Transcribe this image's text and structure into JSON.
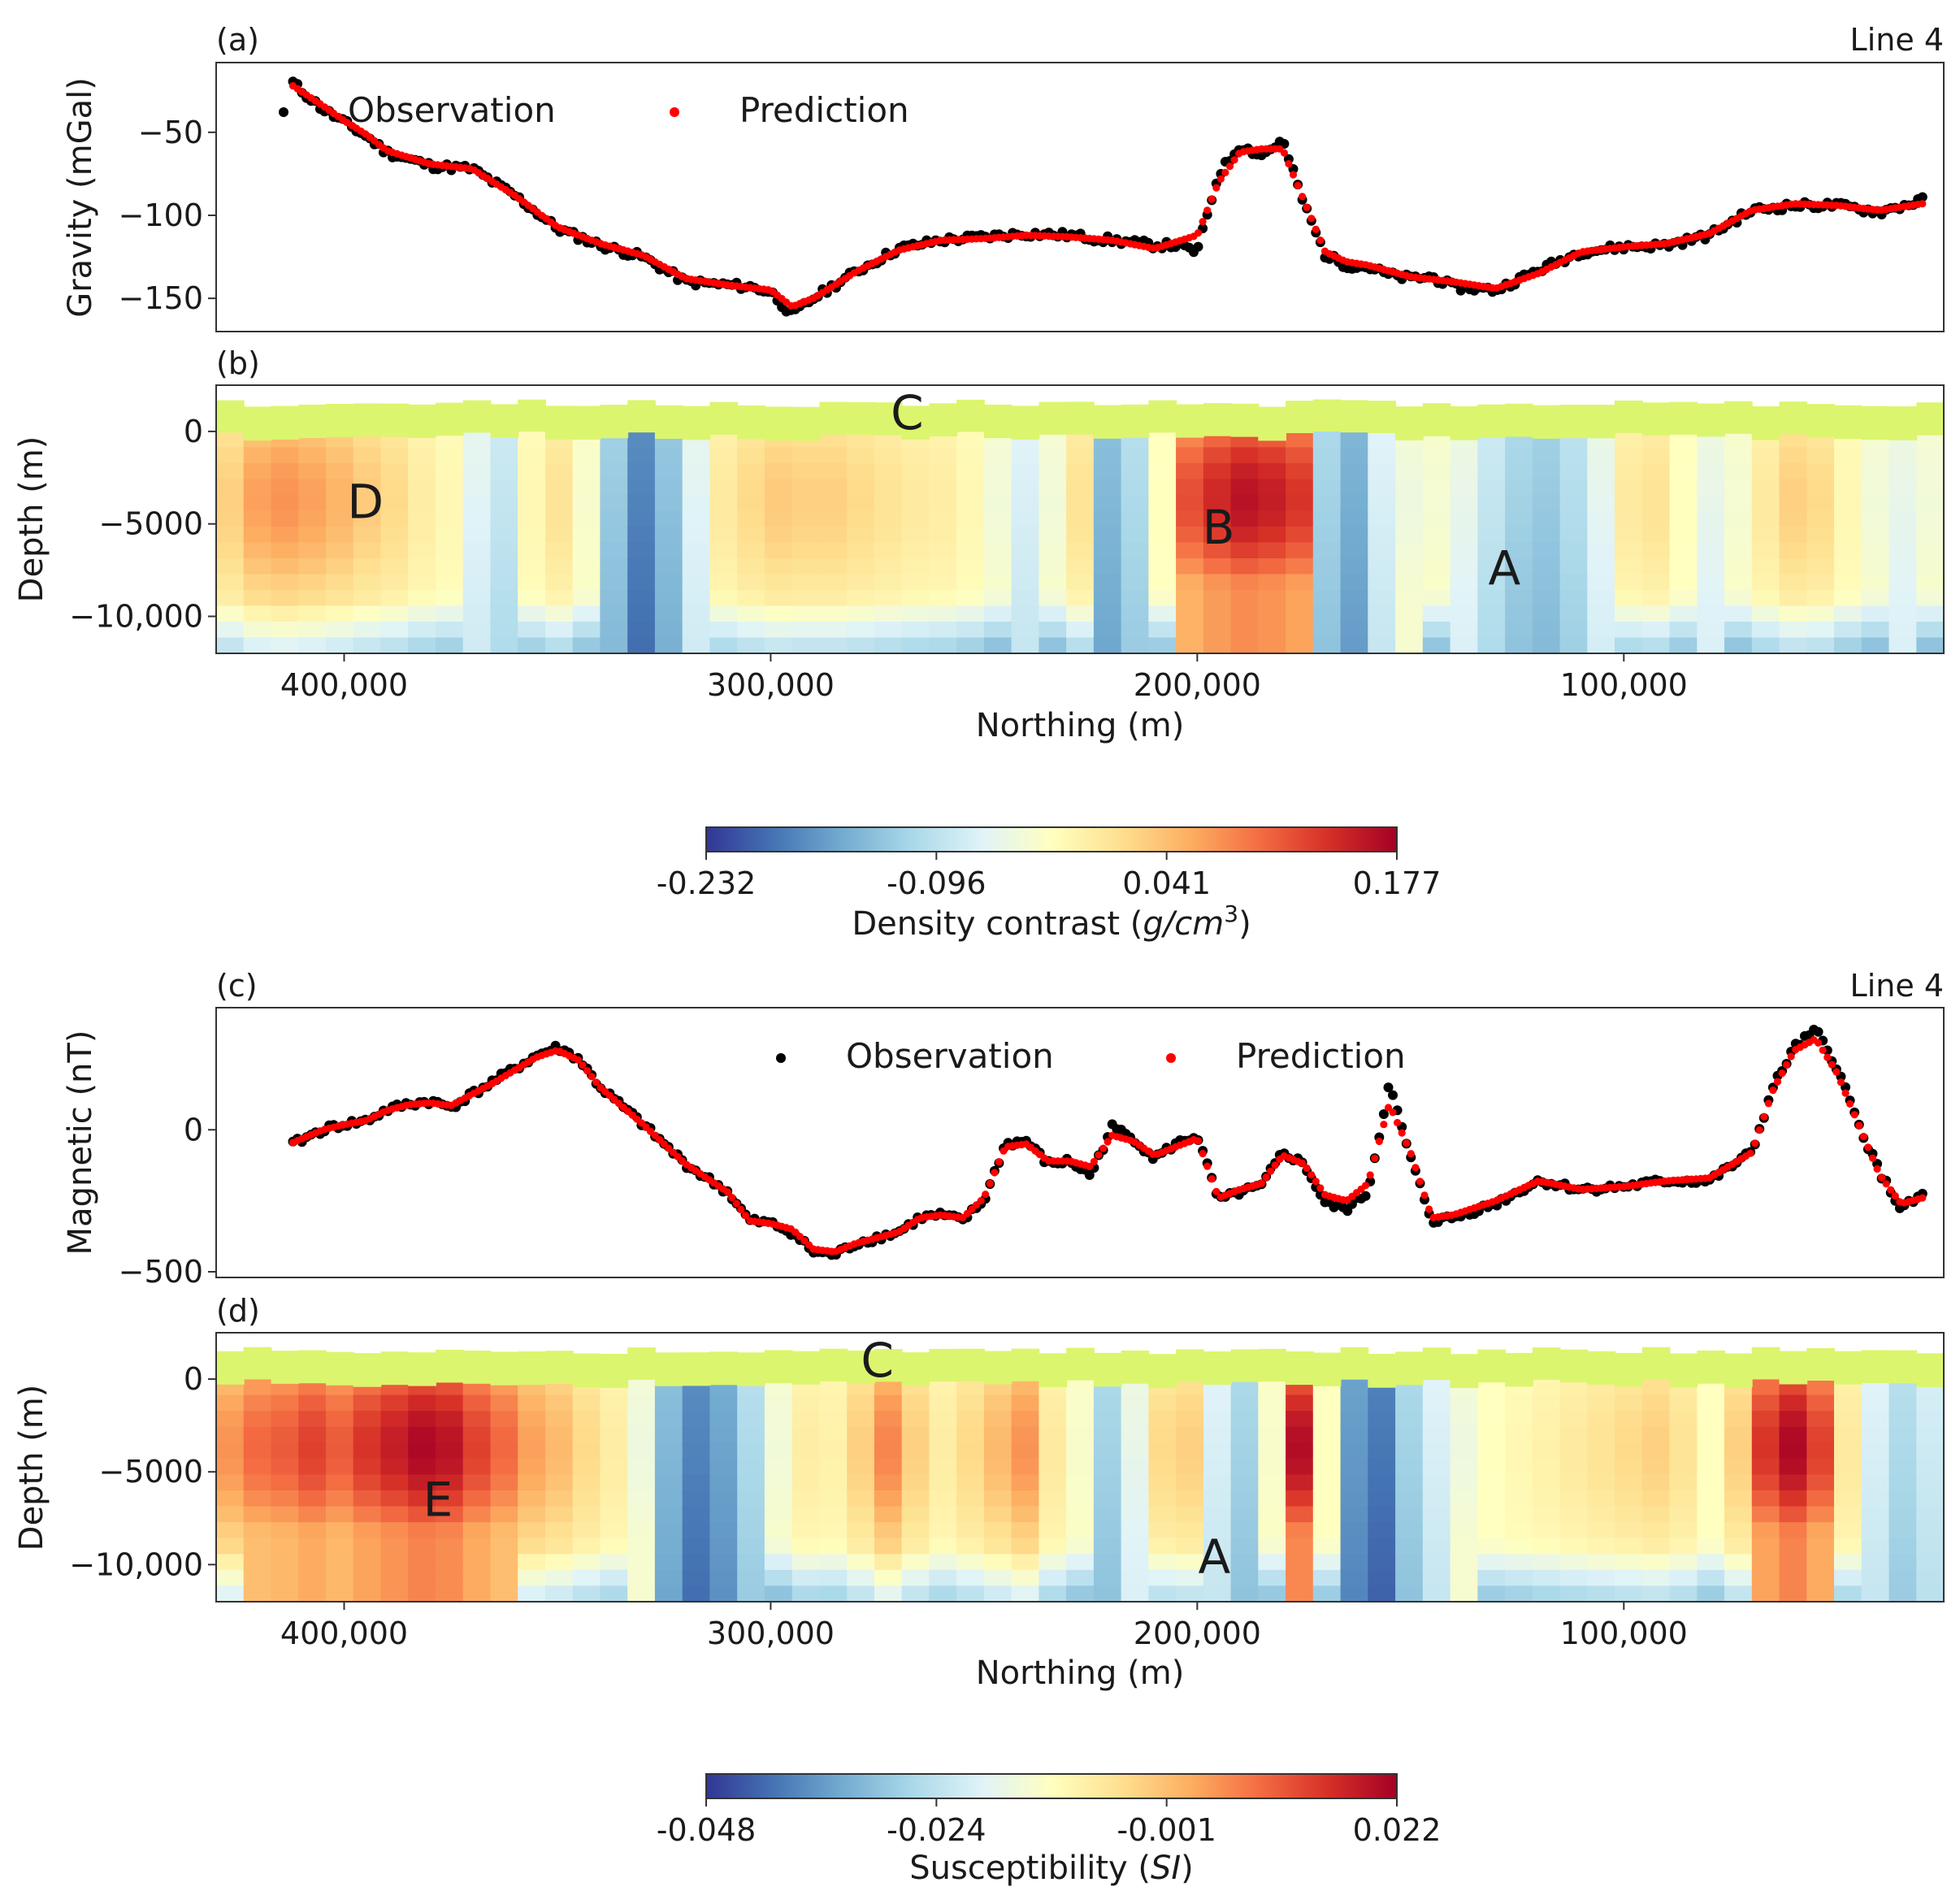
{
  "figure": {
    "line_label": "Line 4"
  },
  "colorscale": [
    "#313695",
    "#4575b4",
    "#74add1",
    "#abd9e9",
    "#e0f3f8",
    "#ffffbf",
    "#fee090",
    "#fdae61",
    "#f46d43",
    "#d73027",
    "#a50026"
  ],
  "overburden_color": "#dcf56e",
  "chart_data": [
    {
      "id": "a",
      "panel_label": "(a)",
      "type": "scatter",
      "ylabel": "Gravity (mGal)",
      "xlim": [
        430000,
        25000
      ],
      "ylim": [
        -170,
        -8
      ],
      "yticks": [
        -50,
        -100,
        -150
      ],
      "ytick_labels": [
        "−50",
        "−100",
        "−150"
      ],
      "legend": {
        "placement": "top-left",
        "entries": [
          "Observation",
          "Prediction"
        ]
      },
      "series": [
        {
          "name": "Observation",
          "color": "#000000",
          "noise": 2.2,
          "x": [
            412000,
            410000,
            405000,
            400000,
            395000,
            390000,
            380000,
            370000,
            360000,
            350000,
            340000,
            330000,
            320000,
            310000,
            305000,
            300000,
            295000,
            290000,
            280000,
            270000,
            260000,
            250000,
            240000,
            230000,
            220000,
            210000,
            205000,
            200000,
            195000,
            190000,
            185000,
            180000,
            175000,
            170000,
            165000,
            160000,
            155000,
            150000,
            145000,
            140000,
            130000,
            120000,
            110000,
            100000,
            90000,
            80000,
            70000,
            60000,
            50000,
            40000,
            30000
          ],
          "y": [
            -20,
            -25,
            -36,
            -44,
            -52,
            -62,
            -70,
            -72,
            -88,
            -108,
            -118,
            -125,
            -140,
            -142,
            -143,
            -146,
            -160,
            -150,
            -134,
            -120,
            -115,
            -113,
            -111,
            -112,
            -115,
            -118,
            -118,
            -122,
            -75,
            -58,
            -64,
            -55,
            -93,
            -124,
            -130,
            -131,
            -136,
            -138,
            -137,
            -143,
            -145,
            -133,
            -122,
            -119,
            -118,
            -112,
            -97,
            -94,
            -94,
            -98,
            -91
          ]
        },
        {
          "name": "Prediction",
          "color": "#ff0000",
          "noise": 0,
          "x": [
            412000,
            405000,
            400000,
            395000,
            390000,
            380000,
            370000,
            360000,
            350000,
            340000,
            330000,
            320000,
            310000,
            300000,
            295000,
            290000,
            280000,
            270000,
            260000,
            250000,
            240000,
            230000,
            220000,
            210000,
            200000,
            195000,
            190000,
            185000,
            180000,
            175000,
            170000,
            165000,
            160000,
            150000,
            140000,
            130000,
            120000,
            110000,
            100000,
            90000,
            80000,
            70000,
            60000,
            50000,
            40000,
            30000
          ],
          "y": [
            -22,
            -34,
            -43,
            -51,
            -61,
            -69,
            -72,
            -88,
            -107,
            -117,
            -124,
            -138,
            -142,
            -145,
            -155,
            -150,
            -134,
            -121,
            -115,
            -114,
            -112,
            -113,
            -115,
            -120,
            -112,
            -80,
            -62,
            -60,
            -60,
            -91,
            -122,
            -128,
            -130,
            -137,
            -140,
            -144,
            -135,
            -122,
            -119,
            -117,
            -111,
            -97,
            -93,
            -94,
            -97,
            -93
          ]
        }
      ]
    },
    {
      "id": "b",
      "panel_label": "(b)",
      "type": "heatmap",
      "ylabel": "Depth (m)",
      "xlabel": "Northing (m)",
      "xlim": [
        430000,
        25000
      ],
      "ylim": [
        -12000,
        2500
      ],
      "xticks": [
        400000,
        300000,
        200000,
        100000
      ],
      "xtick_labels": [
        "400,000",
        "300,000",
        "200,000",
        "100,000"
      ],
      "yticks": [
        0,
        -5000,
        -10000
      ],
      "ytick_labels": [
        "0",
        "−5000",
        "−10,000"
      ],
      "z_columns": [
        0.62,
        0.7,
        0.72,
        0.7,
        0.67,
        0.63,
        0.6,
        0.55,
        0.52,
        0.42,
        0.36,
        0.52,
        0.58,
        0.48,
        0.28,
        0.14,
        0.26,
        0.42,
        0.56,
        0.6,
        0.63,
        0.62,
        0.62,
        0.6,
        0.58,
        0.56,
        0.55,
        0.52,
        0.46,
        0.4,
        0.46,
        0.58,
        0.24,
        0.32,
        0.5,
        0.82,
        0.88,
        0.92,
        0.9,
        0.86,
        0.3,
        0.22,
        0.4,
        0.45,
        0.47,
        0.44,
        0.36,
        0.3,
        0.28,
        0.33,
        0.43,
        0.56,
        0.58,
        0.5,
        0.44,
        0.47,
        0.56,
        0.62,
        0.6,
        0.52,
        0.46,
        0.44,
        0.46
      ],
      "colorbar": {
        "ticks": [
          "-0.232",
          "-0.096",
          "0.041",
          "0.177"
        ],
        "label_prefix": "Density contrast (",
        "label_unit": "g/cm",
        "label_power": "3",
        "label_suffix": ")"
      },
      "annotations": [
        {
          "text": "C",
          "x": 268000,
          "y": 1000
        },
        {
          "text": "D",
          "x": 395000,
          "y": -3800
        },
        {
          "text": "B",
          "x": 195000,
          "y": -5200
        },
        {
          "text": "A",
          "x": 128000,
          "y": -7400
        }
      ]
    },
    {
      "id": "c",
      "panel_label": "(c)",
      "type": "scatter",
      "ylabel": "Magnetic (nT)",
      "xlim": [
        430000,
        25000
      ],
      "ylim": [
        -520,
        430
      ],
      "yticks": [
        0,
        -500
      ],
      "ytick_labels": [
        "0",
        "−500"
      ],
      "legend": {
        "placement": "top-center",
        "entries": [
          "Observation",
          "Prediction"
        ]
      },
      "series": [
        {
          "name": "Observation",
          "color": "#000000",
          "noise": 12,
          "x": [
            412000,
            405000,
            400000,
            395000,
            390000,
            385000,
            380000,
            375000,
            365000,
            355000,
            350000,
            345000,
            340000,
            330000,
            320000,
            310000,
            305000,
            300000,
            295000,
            290000,
            285000,
            280000,
            275000,
            270000,
            265000,
            260000,
            255000,
            250000,
            245000,
            240000,
            235000,
            230000,
            225000,
            220000,
            215000,
            210000,
            205000,
            200000,
            195000,
            190000,
            185000,
            180000,
            175000,
            170000,
            165000,
            160000,
            155000,
            150000,
            145000,
            140000,
            130000,
            120000,
            110000,
            100000,
            90000,
            80000,
            70000,
            65000,
            60000,
            55000,
            50000,
            45000,
            40000,
            35000,
            30000
          ],
          "y": [
            -50,
            0,
            20,
            30,
            70,
            90,
            100,
            80,
            170,
            260,
            290,
            250,
            150,
            20,
            -120,
            -220,
            -320,
            -330,
            -360,
            -430,
            -440,
            -400,
            -380,
            -360,
            -310,
            -300,
            -320,
            -250,
            -50,
            -40,
            -120,
            -110,
            -160,
            10,
            -30,
            -100,
            -50,
            -20,
            -250,
            -220,
            -200,
            -80,
            -120,
            -260,
            -280,
            -220,
            160,
            -100,
            -320,
            -310,
            -260,
            -180,
            -210,
            -200,
            -180,
            -180,
            -80,
            150,
            290,
            350,
            220,
            20,
            -150,
            -280,
            -230
          ]
        },
        {
          "name": "Prediction",
          "color": "#ff0000",
          "noise": 0,
          "x": [
            412000,
            405000,
            400000,
            395000,
            390000,
            385000,
            380000,
            375000,
            365000,
            355000,
            350000,
            345000,
            340000,
            330000,
            320000,
            310000,
            305000,
            300000,
            295000,
            290000,
            285000,
            280000,
            275000,
            270000,
            265000,
            260000,
            255000,
            250000,
            245000,
            240000,
            235000,
            230000,
            225000,
            220000,
            215000,
            210000,
            205000,
            200000,
            195000,
            190000,
            185000,
            180000,
            175000,
            170000,
            165000,
            160000,
            155000,
            150000,
            145000,
            140000,
            130000,
            120000,
            110000,
            100000,
            90000,
            80000,
            70000,
            65000,
            60000,
            55000,
            50000,
            45000,
            40000,
            35000,
            30000
          ],
          "y": [
            -45,
            0,
            18,
            32,
            68,
            88,
            95,
            85,
            165,
            255,
            280,
            245,
            150,
            20,
            -120,
            -220,
            -320,
            -330,
            -350,
            -420,
            -430,
            -400,
            -380,
            -360,
            -310,
            -300,
            -310,
            -240,
            -60,
            -50,
            -110,
            -110,
            -130,
            -20,
            -40,
            -90,
            -60,
            -30,
            -240,
            -210,
            -190,
            -90,
            -120,
            -230,
            -250,
            -190,
            90,
            -80,
            -310,
            -300,
            -250,
            -180,
            -210,
            -200,
            -180,
            -170,
            -80,
            140,
            280,
            320,
            200,
            20,
            -160,
            -260,
            -240
          ]
        }
      ]
    },
    {
      "id": "d",
      "panel_label": "(d)",
      "type": "heatmap",
      "ylabel": "Depth (m)",
      "xlabel": "Northing (m)",
      "xlim": [
        430000,
        25000
      ],
      "ylim": [
        -12000,
        2500
      ],
      "xticks": [
        400000,
        300000,
        200000,
        100000
      ],
      "xtick_labels": [
        "400,000",
        "300,000",
        "200,000",
        "100,000"
      ],
      "yticks": [
        0,
        -5000,
        -10000
      ],
      "ytick_labels": [
        "0",
        "−5000",
        "−10,000"
      ],
      "z_columns": [
        0.72,
        0.78,
        0.8,
        0.84,
        0.8,
        0.86,
        0.9,
        0.94,
        0.92,
        0.84,
        0.78,
        0.7,
        0.66,
        0.6,
        0.55,
        0.45,
        0.24,
        0.14,
        0.2,
        0.32,
        0.46,
        0.55,
        0.54,
        0.62,
        0.74,
        0.62,
        0.55,
        0.6,
        0.66,
        0.72,
        0.56,
        0.48,
        0.3,
        0.44,
        0.6,
        0.62,
        0.4,
        0.3,
        0.48,
        0.93,
        0.5,
        0.18,
        0.12,
        0.3,
        0.4,
        0.45,
        0.5,
        0.52,
        0.54,
        0.56,
        0.58,
        0.6,
        0.62,
        0.58,
        0.5,
        0.62,
        0.86,
        0.94,
        0.84,
        0.56,
        0.4,
        0.32,
        0.38
      ],
      "colorbar": {
        "ticks": [
          "-0.048",
          "-0.024",
          "-0.001",
          "0.022"
        ],
        "label_prefix": "Susceptibility (",
        "label_unit": "SI",
        "label_power": "",
        "label_suffix": ")"
      },
      "annotations": [
        {
          "text": "C",
          "x": 275000,
          "y": 1000
        },
        {
          "text": "E",
          "x": 378000,
          "y": -6500
        },
        {
          "text": "A",
          "x": 196000,
          "y": -9600
        }
      ]
    }
  ]
}
